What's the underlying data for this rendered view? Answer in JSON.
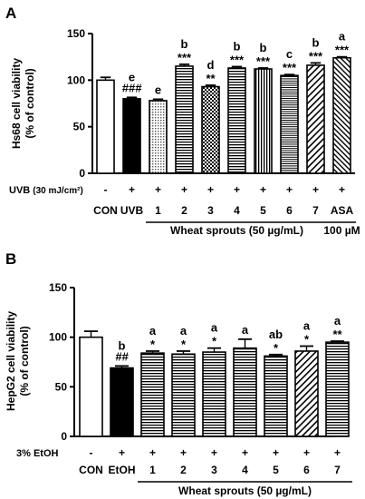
{
  "chart_data": [
    {
      "type": "bar",
      "panel": "A",
      "ylabel": "Hs68 cell viability",
      "ylabel2": "(% of control)",
      "ylim": [
        0,
        150
      ],
      "yticks": [
        0,
        50,
        100,
        150
      ],
      "categories": [
        "CON",
        "UVB",
        "1",
        "2",
        "3",
        "4",
        "5",
        "6",
        "7",
        "ASA"
      ],
      "values": [
        100,
        80,
        78,
        115,
        93,
        113,
        112,
        105,
        116,
        124
      ],
      "errors": [
        3,
        1.5,
        1.5,
        2,
        1.5,
        1.5,
        1,
        1,
        2.5,
        1
      ],
      "patterns": [
        "white",
        "black",
        "dots",
        "hlines",
        "checker",
        "hlines",
        "vlines",
        "hlines-fine",
        "diag",
        "diag-back"
      ],
      "stars": [
        "",
        "###",
        "",
        "***",
        "**",
        "***",
        "***",
        "***",
        "***",
        "***"
      ],
      "letters": [
        "",
        "e",
        "e",
        "b",
        "d",
        "b",
        "b",
        "c",
        "b",
        "a"
      ],
      "treatment_label": "UVB",
      "treatment_unit": "(30 mJ/cm²)",
      "treatment_signs": [
        "-",
        "+",
        "+",
        "+",
        "+",
        "+",
        "+",
        "+",
        "+",
        "+"
      ],
      "group_label": "Wheat sprouts (50 µg/mL)",
      "asa_label": "100 µM"
    },
    {
      "type": "bar",
      "panel": "B",
      "ylabel": "HepG2 cell viability",
      "ylabel2": "(% of control)",
      "ylim": [
        0,
        150
      ],
      "yticks": [
        0,
        50,
        100,
        150
      ],
      "categories": [
        "CON",
        "EtOH",
        "1",
        "2",
        "3",
        "4",
        "5",
        "6",
        "7"
      ],
      "values": [
        100,
        69,
        84,
        83,
        85,
        89,
        81,
        86,
        95
      ],
      "errors": [
        6,
        2,
        2,
        3,
        4,
        9,
        1.5,
        5,
        1
      ],
      "patterns": [
        "white",
        "black",
        "hlines",
        "hlines",
        "hlines",
        "hlines",
        "hlines",
        "diag",
        "hlines"
      ],
      "stars": [
        "",
        "##",
        "*",
        "*",
        "*",
        "",
        "*",
        "*",
        "**"
      ],
      "letters": [
        "",
        "b",
        "a",
        "a",
        "a",
        "a",
        "ab",
        "a",
        "a"
      ],
      "treatment_label": "3% EtOH",
      "treatment_signs": [
        "-",
        "+",
        "+",
        "+",
        "+",
        "+",
        "+",
        "+",
        "+"
      ],
      "group_label": "Wheat sprouts (50 µg/mL)"
    }
  ]
}
